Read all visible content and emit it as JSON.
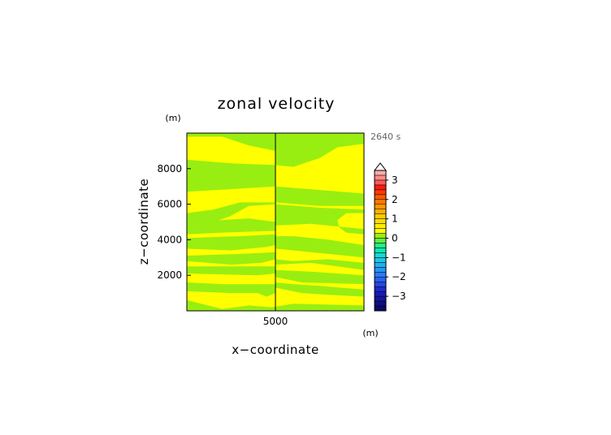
{
  "chart_data": {
    "type": "heatmap",
    "title": "zonal velocity",
    "xlabel": "x−coordinate",
    "ylabel": "z−coordinate",
    "x_unit": "(m)",
    "y_unit": "(m)",
    "time_label": "2640 s",
    "xlim": [
      0,
      10000
    ],
    "ylim": [
      0,
      10000
    ],
    "x_ticks": [
      {
        "value": 5000,
        "label": "5000"
      }
    ],
    "y_ticks": [
      {
        "value": 2000,
        "label": "2000"
      },
      {
        "value": 4000,
        "label": "4000"
      },
      {
        "value": 6000,
        "label": "6000"
      },
      {
        "value": 8000,
        "label": "8000"
      }
    ],
    "field_colors": {
      "yellow": "#ffff00",
      "green": "#99ee11"
    },
    "green_regions": [
      [
        [
          0,
          9800
        ],
        [
          2000,
          9800
        ],
        [
          3500,
          9300
        ],
        [
          5000,
          9000
        ],
        [
          5000,
          10000
        ],
        [
          0,
          10000
        ]
      ],
      [
        [
          5000,
          10000
        ],
        [
          10000,
          10000
        ],
        [
          10000,
          9400
        ],
        [
          8500,
          9200
        ],
        [
          7500,
          8600
        ],
        [
          6000,
          8100
        ],
        [
          5000,
          8200
        ]
      ],
      [
        [
          0,
          8500
        ],
        [
          2500,
          8300
        ],
        [
          5000,
          8200
        ],
        [
          5000,
          7000
        ],
        [
          0,
          6700
        ]
      ],
      [
        [
          5000,
          7000
        ],
        [
          10000,
          6600
        ],
        [
          10000,
          5900
        ],
        [
          7500,
          5900
        ],
        [
          5000,
          6100
        ]
      ],
      [
        [
          0,
          5400
        ],
        [
          1200,
          5300
        ],
        [
          1500,
          4800
        ],
        [
          1200,
          4400
        ],
        [
          0,
          4400
        ]
      ],
      [
        [
          0,
          4300
        ],
        [
          2000,
          4400
        ],
        [
          5000,
          4500
        ],
        [
          5000,
          5000
        ],
        [
          3500,
          5200
        ],
        [
          1800,
          5100
        ],
        [
          2400,
          5300
        ],
        [
          3500,
          5900
        ],
        [
          5000,
          6000
        ],
        [
          5000,
          6100
        ],
        [
          3000,
          6100
        ],
        [
          1500,
          5700
        ],
        [
          0,
          5500
        ]
      ],
      [
        [
          5000,
          4800
        ],
        [
          7000,
          4900
        ],
        [
          9000,
          4700
        ],
        [
          10000,
          4600
        ],
        [
          10000,
          4300
        ],
        [
          9000,
          4400
        ],
        [
          8600,
          4700
        ],
        [
          8500,
          5100
        ],
        [
          9000,
          5500
        ],
        [
          10000,
          5500
        ],
        [
          10000,
          5700
        ],
        [
          7500,
          5800
        ],
        [
          5000,
          6000
        ]
      ],
      [
        [
          0,
          3500
        ],
        [
          2500,
          3400
        ],
        [
          4500,
          3600
        ],
        [
          5000,
          3700
        ],
        [
          5000,
          4300
        ],
        [
          3000,
          4200
        ],
        [
          0,
          4100
        ]
      ],
      [
        [
          5000,
          3500
        ],
        [
          7000,
          3300
        ],
        [
          10000,
          3000
        ],
        [
          10000,
          3700
        ],
        [
          8000,
          4000
        ],
        [
          6000,
          4200
        ],
        [
          5000,
          4200
        ]
      ],
      [
        [
          0,
          2800
        ],
        [
          2500,
          2600
        ],
        [
          4200,
          2700
        ],
        [
          5000,
          2900
        ],
        [
          5000,
          3300
        ],
        [
          3000,
          3200
        ],
        [
          0,
          3100
        ]
      ],
      [
        [
          5000,
          2600
        ],
        [
          7000,
          2700
        ],
        [
          10000,
          2300
        ],
        [
          10000,
          2700
        ],
        [
          8000,
          2900
        ],
        [
          6000,
          2800
        ],
        [
          5000,
          2900
        ]
      ],
      [
        [
          0,
          2100
        ],
        [
          4000,
          2000
        ],
        [
          5000,
          2100
        ],
        [
          5000,
          2500
        ],
        [
          3000,
          2500
        ],
        [
          0,
          2500
        ]
      ],
      [
        [
          5000,
          1900
        ],
        [
          6500,
          1600
        ],
        [
          10000,
          1500
        ],
        [
          10000,
          2000
        ],
        [
          7000,
          2200
        ],
        [
          5000,
          2300
        ]
      ],
      [
        [
          0,
          1100
        ],
        [
          2500,
          1000
        ],
        [
          4000,
          1000
        ],
        [
          4500,
          800
        ],
        [
          5000,
          1000
        ],
        [
          5000,
          1500
        ],
        [
          3500,
          1500
        ],
        [
          2000,
          1500
        ],
        [
          0,
          1600
        ]
      ],
      [
        [
          5000,
          1300
        ],
        [
          6500,
          1000
        ],
        [
          8000,
          900
        ],
        [
          10000,
          800
        ],
        [
          10000,
          1200
        ],
        [
          7500,
          1400
        ],
        [
          6000,
          1500
        ],
        [
          5000,
          1600
        ]
      ],
      [
        [
          0,
          0
        ],
        [
          10000,
          0
        ],
        [
          10000,
          300
        ],
        [
          6000,
          400
        ],
        [
          4800,
          200
        ],
        [
          3500,
          300
        ],
        [
          2000,
          100
        ],
        [
          0,
          600
        ]
      ],
      [
        [
          4400,
          1000
        ],
        [
          4700,
          900
        ],
        [
          4900,
          1100
        ],
        [
          4600,
          1200
        ]
      ]
    ],
    "colorbar": {
      "levels": [
        {
          "value": -3.75,
          "color": "#0b0b66"
        },
        {
          "value": -3.5,
          "color": "#101080"
        },
        {
          "value": -3.25,
          "color": "#16169a"
        },
        {
          "value": -3.0,
          "color": "#1a1ab4"
        },
        {
          "value": -2.75,
          "color": "#1f2ace"
        },
        {
          "value": -2.5,
          "color": "#2646e6"
        },
        {
          "value": -2.25,
          "color": "#2a62f2"
        },
        {
          "value": -2.0,
          "color": "#2a7cf5"
        },
        {
          "value": -1.75,
          "color": "#2496f2"
        },
        {
          "value": -1.5,
          "color": "#1fb0ee"
        },
        {
          "value": -1.25,
          "color": "#18c8e6"
        },
        {
          "value": -1.0,
          "color": "#10dcd0"
        },
        {
          "value": -0.75,
          "color": "#0ae8b0"
        },
        {
          "value": -0.5,
          "color": "#22ee88"
        },
        {
          "value": -0.25,
          "color": "#60f040"
        },
        {
          "value": 0.0,
          "color": "#99ee11"
        },
        {
          "value": 0.25,
          "color": "#ffff00"
        },
        {
          "value": 0.5,
          "color": "#ffee00"
        },
        {
          "value": 0.75,
          "color": "#ffdd00"
        },
        {
          "value": 1.0,
          "color": "#ffcc00"
        },
        {
          "value": 1.25,
          "color": "#ffb000"
        },
        {
          "value": 1.5,
          "color": "#ff9600"
        },
        {
          "value": 1.75,
          "color": "#ff7a00"
        },
        {
          "value": 2.0,
          "color": "#ff5a00"
        },
        {
          "value": 2.25,
          "color": "#ff3a00"
        },
        {
          "value": 2.5,
          "color": "#ff1a10"
        },
        {
          "value": 2.75,
          "color": "#ff5a5a"
        },
        {
          "value": 3.0,
          "color": "#ff8a8a"
        },
        {
          "value": 3.25,
          "color": "#ffaaaa"
        }
      ],
      "range": [
        -3.75,
        3.5
      ],
      "tick_labels": [
        {
          "value": 3,
          "label": "3"
        },
        {
          "value": 2,
          "label": "2"
        },
        {
          "value": 1,
          "label": "1"
        },
        {
          "value": 0,
          "label": "0"
        },
        {
          "value": -1,
          "label": "−1"
        },
        {
          "value": -2,
          "label": "−2"
        },
        {
          "value": -3,
          "label": "−3"
        }
      ],
      "extend_top": true,
      "extend_top_color": "#ffffff"
    },
    "center_line_x": 5000,
    "grid": false
  }
}
